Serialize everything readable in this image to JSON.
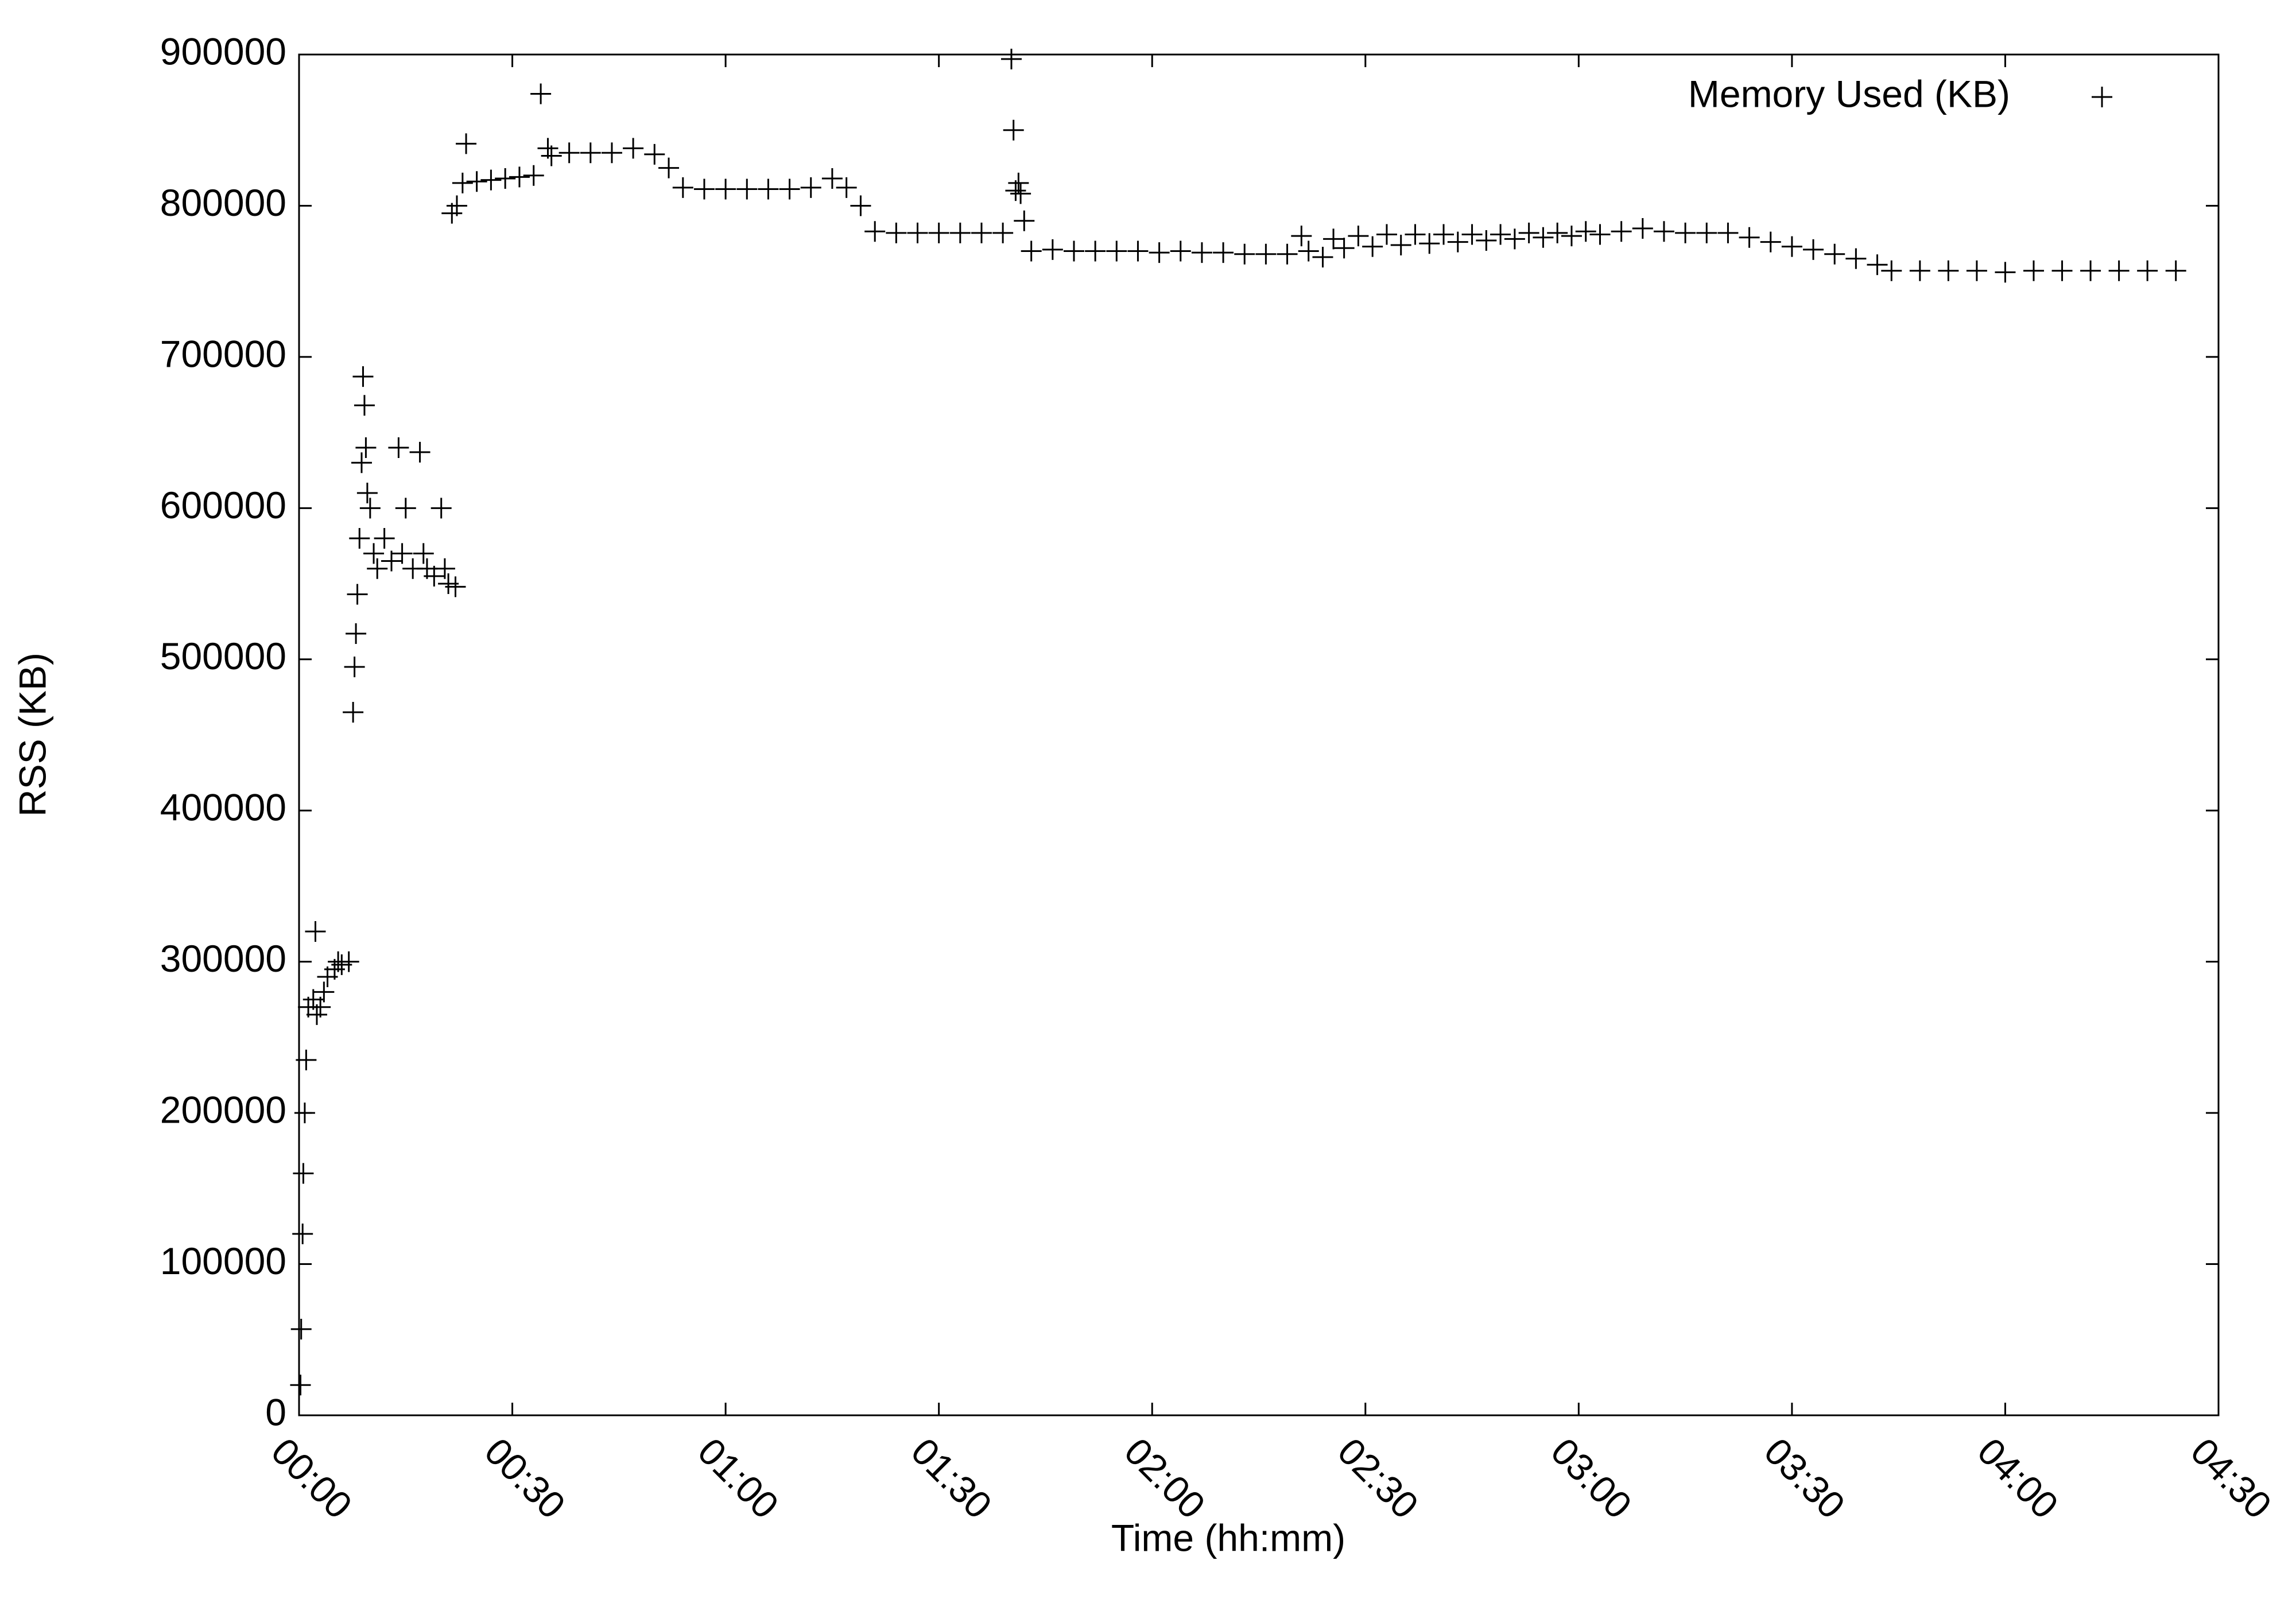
{
  "chart_data": {
    "type": "scatter",
    "x_label": "Time (hh:mm)",
    "y_label": "RSS (KB)",
    "xlim": [
      0,
      270
    ],
    "ylim": [
      0,
      900000
    ],
    "xticks": [
      {
        "value": 0,
        "label": "00:00"
      },
      {
        "value": 30,
        "label": "00:30"
      },
      {
        "value": 60,
        "label": "01:00"
      },
      {
        "value": 90,
        "label": "01:30"
      },
      {
        "value": 120,
        "label": "02:00"
      },
      {
        "value": 150,
        "label": "02:30"
      },
      {
        "value": 180,
        "label": "03:00"
      },
      {
        "value": 210,
        "label": "03:30"
      },
      {
        "value": 240,
        "label": "04:00"
      },
      {
        "value": 270,
        "label": "04:30"
      }
    ],
    "yticks": [
      0,
      100000,
      200000,
      300000,
      400000,
      500000,
      600000,
      700000,
      800000,
      900000
    ],
    "legend": "top-right",
    "series": [
      {
        "name": "Memory Used (KB)",
        "color": "#000000",
        "x": [
          0.2,
          0.3,
          0.5,
          0.6,
          0.8,
          1.0,
          1.3,
          2,
          2.3,
          2.5,
          3,
          3.5,
          4,
          5,
          5.5,
          6,
          7,
          7.6,
          7.8,
          8,
          8.2,
          8.5,
          8.8,
          9,
          9.2,
          9.4,
          9.6,
          10,
          10.5,
          11,
          12,
          13,
          14,
          14.5,
          15,
          16,
          17,
          17.5,
          18,
          19,
          20,
          20.5,
          21,
          22,
          21.5,
          22.2,
          23,
          23.5,
          25,
          27,
          29,
          31,
          33,
          34,
          35,
          35.5,
          38,
          41,
          44,
          47,
          50,
          52,
          54,
          57,
          60,
          63,
          66,
          69,
          72,
          75,
          77,
          79,
          81,
          84,
          87,
          90,
          93,
          96,
          99,
          100.2,
          100.5,
          100.8,
          101.2,
          101.5,
          102,
          103,
          106,
          109,
          112,
          115,
          118,
          121,
          124,
          127,
          130,
          133,
          136,
          139,
          141,
          142,
          144,
          145.5,
          147,
          149,
          151,
          153,
          155,
          157,
          159,
          161,
          163,
          165,
          167,
          169,
          171,
          173,
          175,
          177,
          179,
          181,
          183,
          186,
          189,
          192,
          195,
          198,
          201,
          204,
          207,
          210,
          213,
          216,
          219,
          222,
          224,
          228,
          232,
          236,
          240,
          244,
          248,
          252,
          256,
          260,
          264
        ],
        "values": [
          20000,
          57000,
          120000,
          160000,
          200000,
          235000,
          270000,
          275000,
          320000,
          265000,
          270000,
          280000,
          290000,
          295000,
          300000,
          298000,
          300000,
          465000,
          495000,
          517000,
          543000,
          580000,
          630000,
          687000,
          668000,
          640000,
          610000,
          600000,
          570000,
          560000,
          580000,
          565000,
          640000,
          570000,
          600000,
          560000,
          637000,
          570000,
          560000,
          555000,
          600000,
          560000,
          550000,
          548000,
          795000,
          800000,
          815000,
          841000,
          816000,
          817000,
          818000,
          819000,
          820000,
          874000,
          838000,
          833000,
          835000,
          835000,
          835000,
          838000,
          834000,
          825000,
          812000,
          811000,
          811000,
          811000,
          811000,
          811000,
          812000,
          818000,
          812000,
          800000,
          783000,
          782000,
          782000,
          782000,
          782000,
          782000,
          782000,
          897000,
          850000,
          810000,
          815000,
          808000,
          790000,
          770000,
          771000,
          770000,
          770000,
          770000,
          770000,
          769000,
          770000,
          769000,
          769000,
          768000,
          768000,
          768000,
          780000,
          770000,
          766000,
          778000,
          772000,
          780000,
          773000,
          781000,
          774000,
          781000,
          775000,
          781000,
          776000,
          781000,
          777000,
          781000,
          778000,
          782000,
          779000,
          782000,
          780000,
          783000,
          781000,
          783000,
          785000,
          783000,
          782000,
          782000,
          782000,
          779000,
          776000,
          773000,
          771000,
          768000,
          765000,
          761000,
          757000,
          757000,
          757000,
          757000,
          756000,
          757000,
          757000,
          757000,
          757000,
          757000,
          757000
        ]
      }
    ]
  }
}
